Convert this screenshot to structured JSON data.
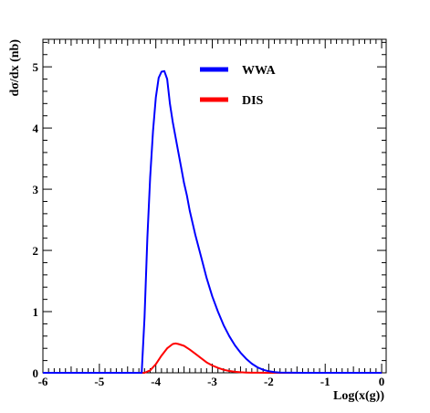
{
  "chart_data": {
    "type": "line",
    "title": "",
    "xlabel": "Log(x(g))",
    "ylabel": "dσ/dx (nb)",
    "xlim": [
      -6,
      0.08
    ],
    "ylim": [
      0,
      5.45
    ],
    "x_ticks": [
      -6,
      -5,
      -4,
      -3,
      -2,
      -1,
      0
    ],
    "x_tick_labels": [
      "-6",
      "-5",
      "-4",
      "-3",
      "-2",
      "-1",
      "0"
    ],
    "y_ticks": [
      0,
      1,
      2,
      3,
      4,
      5
    ],
    "y_tick_labels": [
      "0",
      "1",
      "2",
      "3",
      "4",
      "5"
    ],
    "grid": false,
    "legend_placement": "top-center",
    "series": [
      {
        "name": "WWA",
        "color": "#0000ff",
        "x": [
          -6.0,
          -4.25,
          -4.2,
          -4.15,
          -4.1,
          -4.05,
          -4.0,
          -3.95,
          -3.9,
          -3.85,
          -3.8,
          -3.75,
          -3.7,
          -3.65,
          -3.6,
          -3.55,
          -3.5,
          -3.45,
          -3.4,
          -3.3,
          -3.2,
          -3.1,
          -3.0,
          -2.9,
          -2.8,
          -2.7,
          -2.6,
          -2.5,
          -2.4,
          -2.3,
          -2.2,
          -2.1,
          -2.0,
          -1.9,
          -1.8,
          -1.6,
          -1.4,
          -1.2,
          -1.0,
          -0.5,
          0.0
        ],
        "y": [
          0,
          0,
          0.9,
          2.2,
          3.2,
          3.95,
          4.5,
          4.82,
          4.92,
          4.93,
          4.8,
          4.4,
          4.1,
          3.85,
          3.6,
          3.35,
          3.1,
          2.9,
          2.65,
          2.25,
          1.9,
          1.55,
          1.25,
          1.0,
          0.78,
          0.6,
          0.45,
          0.33,
          0.23,
          0.15,
          0.09,
          0.05,
          0.025,
          0.012,
          0.005,
          0.001,
          0,
          0,
          0,
          0,
          0
        ]
      },
      {
        "name": "DIS",
        "color": "#ff0000",
        "x": [
          -6.0,
          -4.2,
          -4.1,
          -4.0,
          -3.9,
          -3.8,
          -3.7,
          -3.65,
          -3.6,
          -3.5,
          -3.4,
          -3.3,
          -3.2,
          -3.1,
          -3.0,
          -2.9,
          -2.8,
          -2.7,
          -2.6,
          -2.5,
          -2.4,
          -2.3,
          -2.2,
          -2.0,
          -1.5,
          -1.0,
          0.0
        ],
        "y": [
          0,
          0,
          0.04,
          0.14,
          0.28,
          0.4,
          0.47,
          0.48,
          0.47,
          0.44,
          0.38,
          0.31,
          0.24,
          0.17,
          0.12,
          0.08,
          0.05,
          0.03,
          0.017,
          0.009,
          0.004,
          0.002,
          0.001,
          0,
          0,
          0,
          0
        ]
      }
    ]
  }
}
